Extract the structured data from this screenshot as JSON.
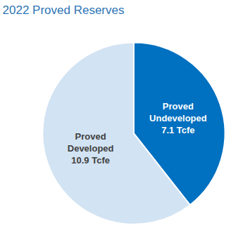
{
  "chart_data": {
    "type": "pie",
    "title": "2022 Proved Reserves",
    "categories": [
      "Proved Undeveloped",
      "Proved Developed"
    ],
    "values": [
      7.1,
      10.9
    ],
    "value_labels": [
      "7.1 Tcfe",
      "10.9 Tcfe"
    ],
    "colors": [
      "#0070c0",
      "#d2e3f3"
    ],
    "data_labels": true
  }
}
